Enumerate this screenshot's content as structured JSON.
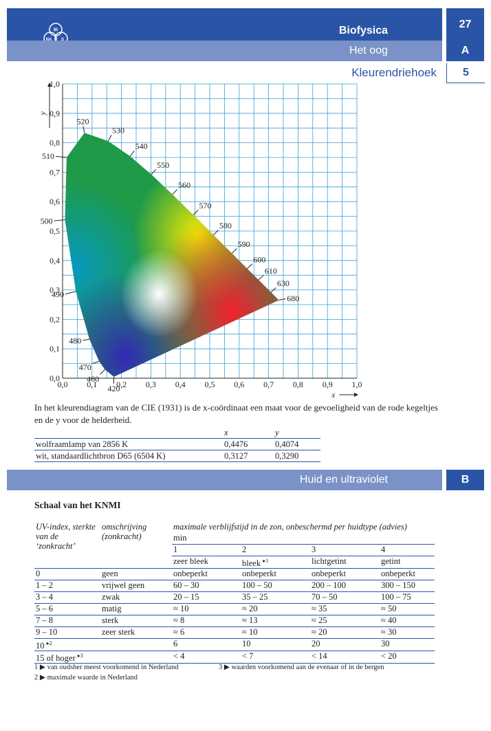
{
  "header": {
    "subject": "Biofysica",
    "page_number": "27",
    "section": "Het oog",
    "section_letter": "A",
    "subsection": "Kleurendriehoek",
    "subsection_number": "5",
    "logo": {
      "top": "BI",
      "left": "NA",
      "right": "S"
    }
  },
  "chart_data": {
    "type": "scatter",
    "title": "",
    "xlabel": "x",
    "ylabel": "y",
    "xlim": [
      0,
      1.0
    ],
    "ylim": [
      0,
      1.0
    ],
    "grid": true,
    "x_ticks": [
      "0,0",
      "0,1",
      "0,2",
      "0,3",
      "0,4",
      "0,5",
      "0,6",
      "0,7",
      "0,8",
      "0,9",
      "1,0"
    ],
    "y_ticks": [
      "0,0",
      "0,1",
      "0,2",
      "0,3",
      "0,4",
      "0,5",
      "0,6",
      "0,7",
      "0,8",
      "0,9",
      "1,0"
    ],
    "locus": [
      {
        "label": "420",
        "x": 0.1741,
        "y": 0.005
      },
      {
        "label": "460",
        "x": 0.144,
        "y": 0.0297
      },
      {
        "label": "470",
        "x": 0.1241,
        "y": 0.0578
      },
      {
        "label": "480",
        "x": 0.0913,
        "y": 0.1327
      },
      {
        "label": "490",
        "x": 0.0454,
        "y": 0.295
      },
      {
        "label": "500",
        "x": 0.0082,
        "y": 0.5384
      },
      {
        "label": "510",
        "x": 0.0139,
        "y": 0.7502
      },
      {
        "label": "520",
        "x": 0.0743,
        "y": 0.8338
      },
      {
        "label": "530",
        "x": 0.1547,
        "y": 0.8059
      },
      {
        "label": "540",
        "x": 0.2296,
        "y": 0.7543
      },
      {
        "label": "550",
        "x": 0.3016,
        "y": 0.6923
      },
      {
        "label": "560",
        "x": 0.3731,
        "y": 0.6245
      },
      {
        "label": "570",
        "x": 0.4441,
        "y": 0.5547
      },
      {
        "label": "580",
        "x": 0.5125,
        "y": 0.4866
      },
      {
        "label": "590",
        "x": 0.5752,
        "y": 0.4242
      },
      {
        "label": "600",
        "x": 0.627,
        "y": 0.3725
      },
      {
        "label": "610",
        "x": 0.6658,
        "y": 0.334
      },
      {
        "label": "630",
        "x": 0.7079,
        "y": 0.292
      },
      {
        "label": "680",
        "x": 0.7347,
        "y": 0.2653
      }
    ]
  },
  "caption": "In het kleurendiagram van de CIE (1931) is de x-coördinaat een maat voor de gevoeligheid van de rode kegeltjes en de y voor de helderheid.",
  "lamp_table": {
    "headers": [
      "",
      "x",
      "y"
    ],
    "rows": [
      [
        "wolfraamlamp van 2856 K",
        "0,4476",
        "0,4074"
      ],
      [
        "wit, standaardlichtbron D65 (6504 K)",
        "0,3127",
        "0,3290"
      ]
    ]
  },
  "section_b": {
    "title": "Huid en ultraviolet",
    "letter": "B"
  },
  "knmi": {
    "title": "Schaal van het KNMI",
    "col1_header": "UV-index, sterkte van de ‘zonkracht’",
    "col2_header": "omschrijving (zonkracht)",
    "col3_header": "maximale verblijfstijd in de zon, onbeschermd per huidtype (advies)",
    "unit": "min",
    "types": [
      "1",
      "2",
      "3",
      "4"
    ],
    "type_names": [
      "zeer bleek",
      "bleek",
      "lichtgetint",
      "getint"
    ],
    "rows": [
      {
        "index": "0",
        "desc": "geen",
        "v": [
          "onbeperkt",
          "onbeperkt",
          "onbeperkt",
          "onbeperkt"
        ]
      },
      {
        "index": "1 – 2",
        "desc": "vrijwel geen",
        "v": [
          "60 – 30",
          "100 – 50",
          "200 – 100",
          "300 – 150"
        ]
      },
      {
        "index": "3 – 4",
        "desc": "zwak",
        "v": [
          "20 – 15",
          "35 – 25",
          "70 – 50",
          "100 – 75"
        ]
      },
      {
        "index": "5 – 6",
        "desc": "matig",
        "v": [
          "≈ 10",
          "≈ 20",
          "≈ 35",
          "≈ 50"
        ]
      },
      {
        "index": "7 – 8",
        "desc": "sterk",
        "v": [
          "≈ 8",
          "≈ 13",
          "≈ 25",
          "≈ 40"
        ]
      },
      {
        "index": "9 – 10",
        "desc": "zeer sterk",
        "v": [
          "≈ 6",
          "≈ 10",
          "≈ 20",
          "≈ 30"
        ]
      },
      {
        "index": "10",
        "desc": "",
        "v": [
          "6",
          "10",
          "20",
          "30"
        ]
      },
      {
        "index": "15 of hoger",
        "desc": "",
        "v": [
          "< 4",
          "< 7",
          "< 14",
          "< 20"
        ]
      }
    ],
    "footnote_marks": [
      "▸1",
      "▸2",
      "▸3"
    ],
    "footnotes": [
      "1 ▶ van oudsher meest voorkomend in Nederland",
      "2 ▶ maximale waarde in Nederland",
      "3 ▶ waarden voorkomend aan de evenaar of in de bergen"
    ]
  }
}
